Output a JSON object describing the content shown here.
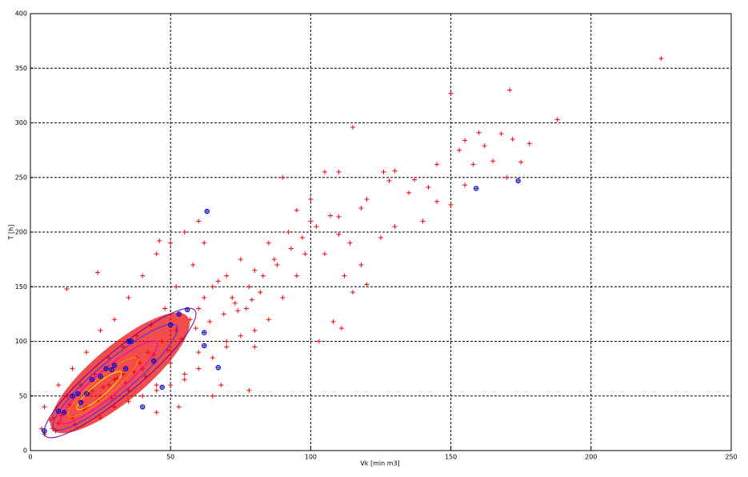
{
  "chart_data": {
    "type": "scatter",
    "xlabel": "Vk [min m3]",
    "ylabel": "T [h]",
    "xlim": [
      0,
      250
    ],
    "ylim": [
      0,
      400
    ],
    "xticks": [
      0,
      50,
      100,
      150,
      200,
      250
    ],
    "yticks": [
      0,
      50,
      100,
      150,
      200,
      250,
      300,
      350,
      400
    ],
    "grid": true,
    "series": [
      {
        "color": "#ff0000",
        "marker": "+",
        "x": [
          225,
          188,
          171,
          150,
          115,
          175,
          178,
          168,
          160,
          155,
          172,
          162,
          153,
          165,
          158,
          170,
          155,
          150,
          145,
          142,
          137,
          130,
          128,
          126,
          120,
          118,
          110,
          105,
          100,
          95,
          90,
          110,
          114,
          100,
          105,
          120,
          118,
          112,
          108,
          111,
          103,
          115,
          125,
          130,
          135,
          140,
          98,
          92,
          85,
          80,
          75,
          70,
          65,
          60,
          88,
          82,
          77,
          72,
          95,
          90,
          85,
          80,
          70,
          60,
          55,
          50,
          45,
          40,
          35,
          30,
          25,
          20,
          15,
          10,
          8,
          5,
          12,
          18,
          22,
          28,
          33,
          38,
          42,
          47,
          52,
          57,
          62,
          67,
          73,
          78,
          83,
          87,
          93,
          97,
          102,
          107,
          5,
          10,
          15,
          20,
          25,
          30,
          35,
          40,
          45,
          50,
          55,
          60,
          62,
          58,
          52,
          48,
          43,
          38,
          33,
          28,
          23,
          18,
          13,
          8,
          25,
          30,
          35,
          40,
          45,
          50,
          55,
          60,
          65,
          70,
          75,
          80,
          78,
          68,
          65,
          53,
          45,
          13,
          24,
          46,
          110,
          145,
          4,
          7,
          9,
          11,
          14,
          16,
          19,
          21,
          24,
          26,
          29,
          31,
          34,
          37,
          39,
          41,
          44,
          49,
          54,
          59,
          64,
          69,
          74,
          79
        ],
        "values": [
          359,
          303,
          330,
          327,
          296,
          264,
          281,
          290,
          291,
          284,
          285,
          279,
          275,
          265,
          262,
          250,
          243,
          225,
          228,
          241,
          248,
          256,
          247,
          255,
          230,
          222,
          214,
          255,
          230,
          220,
          250,
          198,
          190,
          210,
          180,
          152,
          170,
          160,
          118,
          112,
          100,
          145,
          195,
          205,
          236,
          210,
          180,
          200,
          190,
          165,
          175,
          160,
          150,
          130,
          170,
          145,
          130,
          140,
          160,
          140,
          120,
          110,
          95,
          90,
          70,
          80,
          60,
          75,
          55,
          65,
          50,
          40,
          30,
          25,
          20,
          15,
          35,
          45,
          55,
          60,
          70,
          85,
          90,
          100,
          110,
          120,
          140,
          155,
          135,
          150,
          160,
          175,
          185,
          195,
          205,
          215,
          40,
          60,
          75,
          90,
          110,
          120,
          140,
          160,
          180,
          190,
          200,
          210,
          190,
          170,
          150,
          130,
          115,
          105,
          95,
          85,
          70,
          60,
          50,
          30,
          30,
          40,
          45,
          50,
          55,
          60,
          65,
          75,
          85,
          100,
          105,
          95,
          55,
          60,
          50,
          40,
          35,
          148,
          163,
          192,
          255,
          262,
          20,
          28,
          18,
          32,
          42,
          24,
          38,
          52,
          46,
          58,
          48,
          66,
          62,
          72,
          80,
          68,
          88,
          92,
          102,
          112,
          118,
          125,
          128,
          138
        ]
      },
      {
        "color": "#0000cc",
        "marker": "o",
        "x": [
          63,
          174,
          159,
          67,
          56,
          40,
          47,
          10,
          5,
          17,
          20,
          22,
          27,
          30,
          34,
          36,
          44,
          18,
          15,
          25,
          12,
          62,
          62,
          29,
          35,
          50,
          53
        ],
        "values": [
          219,
          247,
          240,
          76,
          129,
          40,
          58,
          36,
          18,
          52,
          52,
          65,
          75,
          78,
          75,
          100,
          82,
          44,
          50,
          68,
          35,
          108,
          96,
          74,
          100,
          115,
          125
        ]
      }
    ]
  }
}
